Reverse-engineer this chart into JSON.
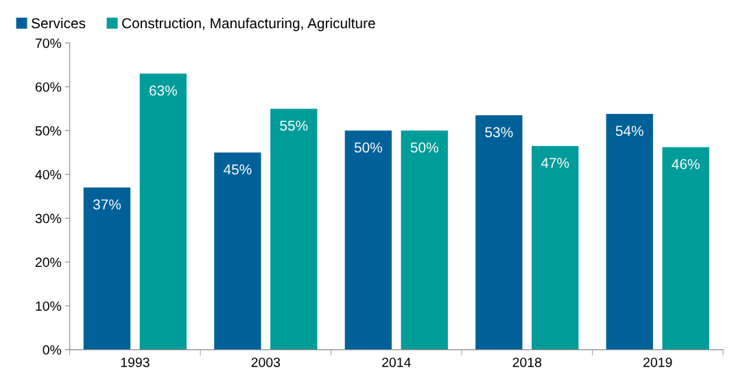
{
  "chart_data": {
    "type": "bar",
    "categories": [
      "1993",
      "2003",
      "2014",
      "2018",
      "2019"
    ],
    "series": [
      {
        "name": "Services",
        "color": "#006199",
        "values": [
          37,
          45,
          50,
          53.5,
          53.8
        ],
        "value_labels": [
          "37%",
          "45%",
          "50%",
          "53%",
          "54%"
        ]
      },
      {
        "name": "Construction, Manufacturing, Agriculture",
        "color": "#009c9a",
        "values": [
          63,
          55,
          50,
          46.5,
          46.2
        ],
        "value_labels": [
          "63%",
          "55%",
          "50%",
          "47%",
          "46%"
        ]
      }
    ],
    "ylim": [
      0,
      70
    ],
    "yticks": [
      {
        "value": 0,
        "label": "0%"
      },
      {
        "value": 10,
        "label": "10%"
      },
      {
        "value": 20,
        "label": "20%"
      },
      {
        "value": 30,
        "label": "30%"
      },
      {
        "value": 40,
        "label": "40%"
      },
      {
        "value": 50,
        "label": "50%"
      },
      {
        "value": 60,
        "label": "60%"
      },
      {
        "value": 70,
        "label": "70%"
      }
    ],
    "grid": false,
    "legend": "top left"
  }
}
